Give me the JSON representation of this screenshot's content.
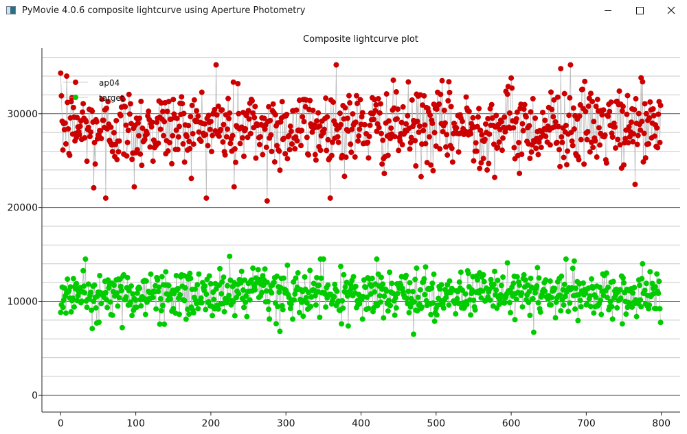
{
  "window": {
    "title": "PyMovie 4.0.6 composite lightcurve using Aperture Photometry",
    "min_icon": "minimize-icon",
    "max_icon": "maximize-icon",
    "close_icon": "close-icon",
    "app_icon": "app-window-icon"
  },
  "chart_data": {
    "type": "scatter",
    "title": "Composite lightcurve plot",
    "xlabel": "",
    "ylabel": "",
    "xlim": [
      -25,
      825
    ],
    "ylim": [
      -1800,
      37000
    ],
    "xticks": [
      0,
      100,
      200,
      300,
      400,
      500,
      600,
      700,
      800
    ],
    "yticks": [
      0,
      10000,
      20000,
      30000
    ],
    "ytick_labels": [
      "0",
      "10000",
      "20000",
      "30000"
    ],
    "xtick_labels": [
      "0",
      "100",
      "200",
      "300",
      "400",
      "500",
      "600",
      "700",
      "800"
    ],
    "grid": true,
    "minor_y_step": 2000,
    "legend_position": "top-left",
    "series": [
      {
        "name": "ap04",
        "color": "#cc0000",
        "line_color": "#bbbbbb",
        "n_points": 800,
        "mean": 28500,
        "sd": 2100,
        "min": 20700,
        "max": 35200,
        "notable": [
          {
            "x": 1,
            "y": 31900
          },
          {
            "x": 8,
            "y": 34000
          },
          {
            "x": 44,
            "y": 22100
          },
          {
            "x": 60,
            "y": 21000
          },
          {
            "x": 98,
            "y": 22200
          },
          {
            "x": 207,
            "y": 35200
          },
          {
            "x": 231,
            "y": 22200
          },
          {
            "x": 236,
            "y": 33200
          },
          {
            "x": 275,
            "y": 20700
          },
          {
            "x": 367,
            "y": 35200
          },
          {
            "x": 600,
            "y": 33800
          },
          {
            "x": 666,
            "y": 34800
          },
          {
            "x": 679,
            "y": 35200
          },
          {
            "x": 747,
            "y": 24200
          },
          {
            "x": 775,
            "y": 33400
          }
        ]
      },
      {
        "name": "target",
        "color": "#00cc00",
        "line_color": "#bbbbbb",
        "n_points": 800,
        "mean": 10700,
        "sd": 1250,
        "min": 6500,
        "max": 14800,
        "notable": [
          {
            "x": 42,
            "y": 7100
          },
          {
            "x": 82,
            "y": 7200
          },
          {
            "x": 225,
            "y": 14800
          },
          {
            "x": 350,
            "y": 14500
          },
          {
            "x": 374,
            "y": 7600
          },
          {
            "x": 470,
            "y": 6500
          },
          {
            "x": 595,
            "y": 14100
          },
          {
            "x": 630,
            "y": 6700
          },
          {
            "x": 748,
            "y": 7600
          },
          {
            "x": 775,
            "y": 14000
          }
        ]
      }
    ]
  }
}
